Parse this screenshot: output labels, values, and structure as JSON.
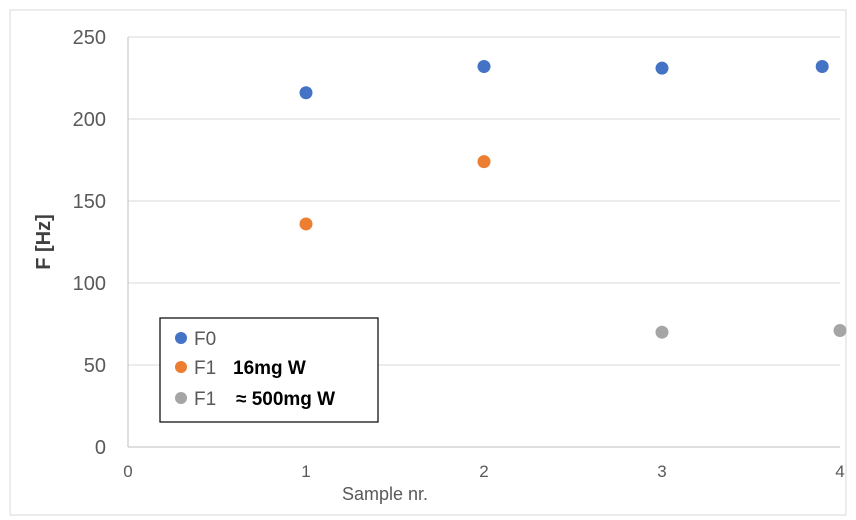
{
  "chart_data": {
    "type": "scatter",
    "title": "",
    "xlabel": "Sample nr.",
    "ylabel": "F [Hz]",
    "xlim": [
      0,
      4
    ],
    "ylim": [
      0,
      250
    ],
    "x_ticks": [
      0,
      1,
      2,
      3,
      4
    ],
    "y_ticks": [
      0,
      50,
      100,
      150,
      200,
      250
    ],
    "grid": "horizontal",
    "legend_position": "bottom-left",
    "series": [
      {
        "name": "F0",
        "color": "#4472c4",
        "points": [
          {
            "x": 1,
            "y": 216
          },
          {
            "x": 2,
            "y": 232
          },
          {
            "x": 3,
            "y": 231
          },
          {
            "x": 3.9,
            "y": 232
          }
        ]
      },
      {
        "name": "F1",
        "name_suffix": "16mg W",
        "color": "#ed7d31",
        "points": [
          {
            "x": 1,
            "y": 136
          },
          {
            "x": 2,
            "y": 174
          }
        ]
      },
      {
        "name": "F1",
        "name_suffix": "≈ 500mg W",
        "color": "#a5a5a5",
        "points": [
          {
            "x": 3,
            "y": 70
          },
          {
            "x": 4,
            "y": 71
          }
        ]
      }
    ]
  }
}
